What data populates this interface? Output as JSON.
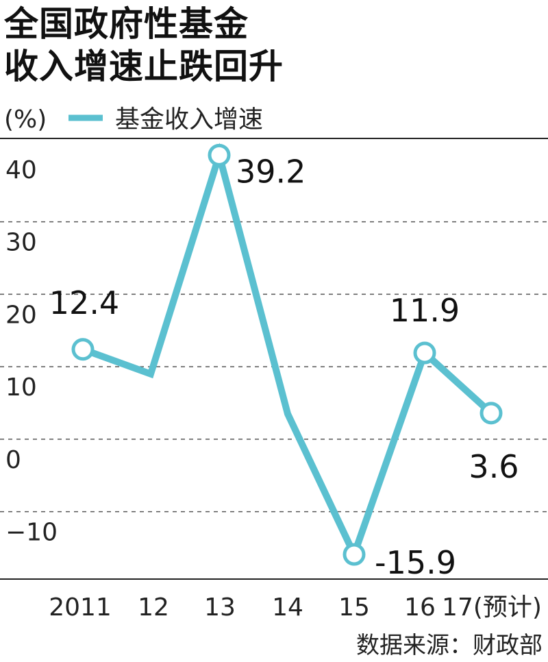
{
  "title_lines": [
    "全国政府性基金",
    "收入增速止跌回升"
  ],
  "source": "数据来源：财政部",
  "chart_data": {
    "type": "line",
    "unit_label": "(%)",
    "categories": [
      "2011",
      "12",
      "13",
      "14",
      "15",
      "16",
      "17(预计)"
    ],
    "series": [
      {
        "name": "基金收入增速",
        "color": "#5bc0d0",
        "values": [
          12.4,
          9.0,
          39.2,
          3.5,
          -15.9,
          11.9,
          3.6
        ]
      }
    ],
    "data_labels": [
      {
        "index": 0,
        "text": "12.4"
      },
      {
        "index": 2,
        "text": "39.2"
      },
      {
        "index": 4,
        "text": "-15.9"
      },
      {
        "index": 5,
        "text": "11.9"
      },
      {
        "index": 6,
        "text": "3.6"
      }
    ],
    "marked_points": [
      0,
      2,
      4,
      5,
      6
    ],
    "y_ticks": [
      40,
      30,
      20,
      10,
      0,
      -10
    ],
    "y_tick_labels": [
      "40",
      "30",
      "20",
      "10",
      "0",
      "−10"
    ],
    "ylim": [
      -19.3,
      41.5
    ],
    "grid": "dashed-horizontal",
    "legend": "top-left"
  }
}
